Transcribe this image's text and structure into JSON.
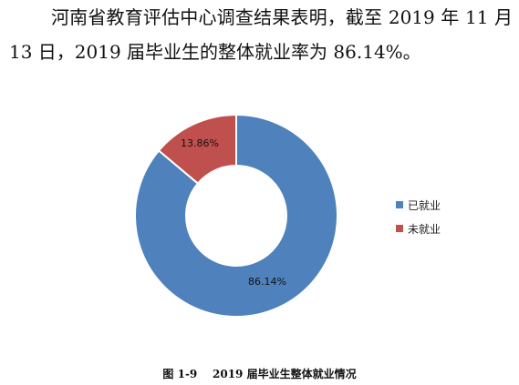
{
  "paragraph": {
    "line1": "河南省教育评估中心调查结果表明，截至 2019 年 11 月",
    "line2": "13 日，2019 届毕业生的整体就业率为 86.14%。"
  },
  "chart_data": {
    "type": "pie",
    "style": "donut",
    "categories": [
      "已就业",
      "未就业"
    ],
    "values": [
      86.14,
      13.86
    ],
    "data_labels": [
      "86.14%",
      "13.86%"
    ],
    "colors": [
      "#4f81bd",
      "#c0504d"
    ],
    "legend_position": "right",
    "title": ""
  },
  "caption": {
    "text": "图 1-9    2019 届毕业生整体就业情况"
  }
}
